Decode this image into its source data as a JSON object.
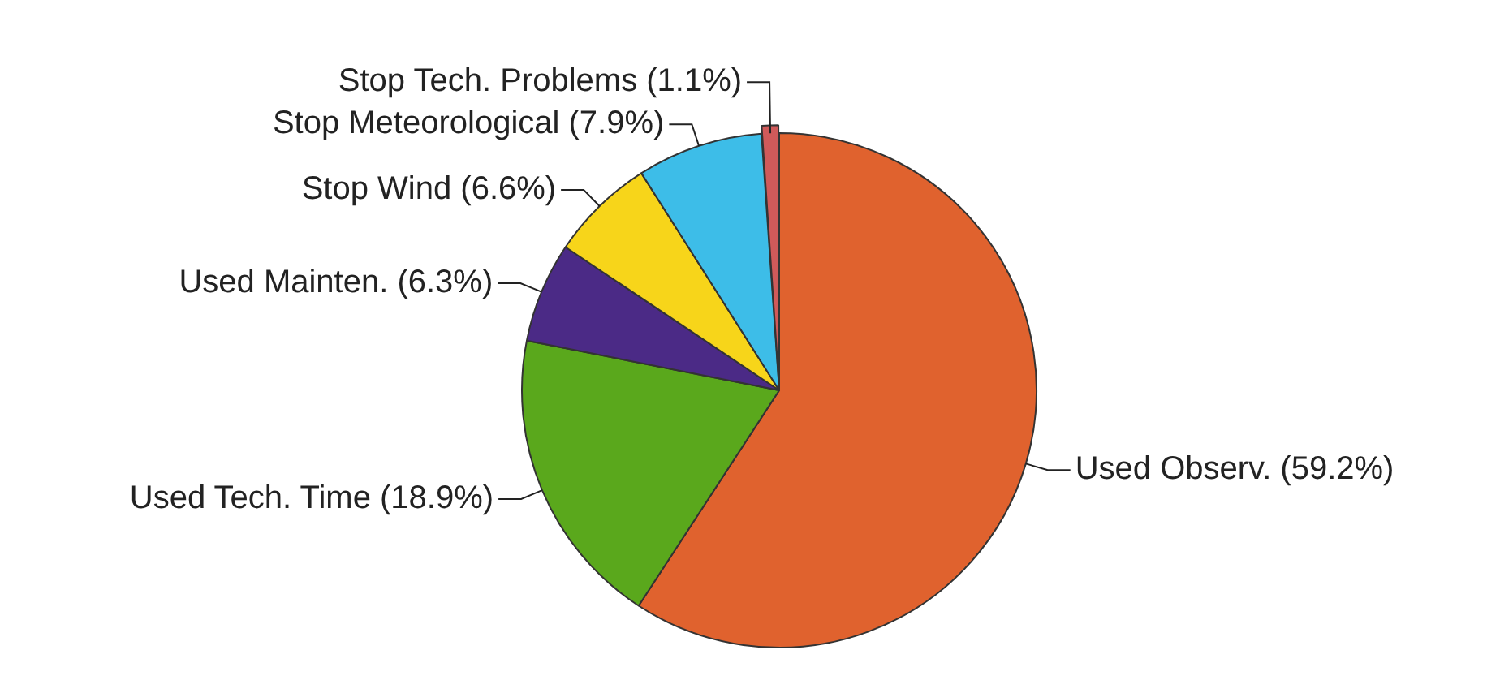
{
  "chart_data": {
    "type": "pie",
    "categories": [
      "Used Observ. (59.2%)",
      "Used Tech. Time (18.9%)",
      "Used Mainten. (6.3%)",
      "Stop Wind (6.6%)",
      "Stop Meteorological (7.9%)",
      "Stop Tech. Problems (1.1%)"
    ],
    "values": [
      59.2,
      18.9,
      6.3,
      6.6,
      7.9,
      1.1
    ],
    "colors": [
      "#e0622e",
      "#5aa81c",
      "#4b2a86",
      "#f7d51a",
      "#3dbde8",
      "#d05a5a"
    ],
    "legend": false
  }
}
